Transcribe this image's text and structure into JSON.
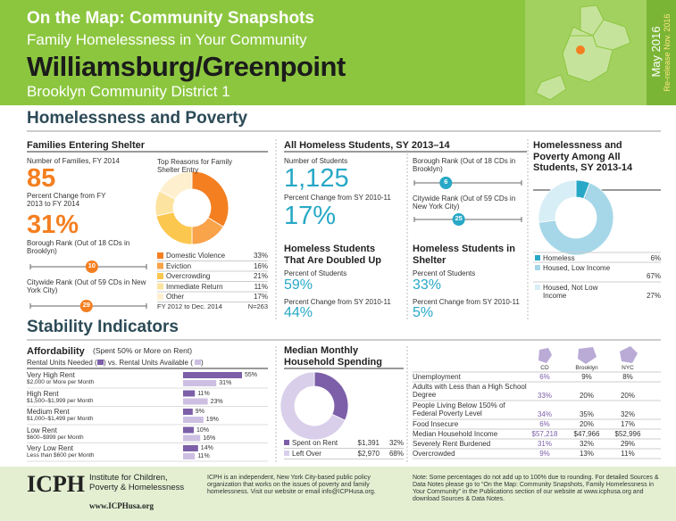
{
  "header": {
    "kicker": "On the Map: Community Snapshots",
    "subtitle": "Family Homelessness in Your Community",
    "title": "Williamsburg/Greenpoint",
    "district": "Brooklyn Community District 1",
    "date": "May 2016",
    "rerelease": "Re-release Nov. 2016"
  },
  "section1": "Homelessness and Poverty",
  "families": {
    "heading": "Families Entering Shelter",
    "count_label": "Number of Families, FY 2014",
    "count": "85",
    "change_label": "Percent Change from FY 2013 to FY 2014",
    "change": "31%",
    "borough_rank": {
      "label": "Borough Rank (Out of 18 CDs in Brooklyn)",
      "value": 10,
      "of": 18
    },
    "citywide_rank": {
      "label": "Citywide Rank (Out of 59 CDs in New York City)",
      "value": 29,
      "of": 59
    },
    "reasons": {
      "title": "Top Reasons for Family Shelter Entry",
      "categories": [
        "Domestic Violence",
        "Eviction",
        "Overcrowding",
        "Immediate Return",
        "Other"
      ],
      "values": [
        33,
        16,
        21,
        11,
        17
      ],
      "value_labels": [
        "33%",
        "16%",
        "21%",
        "11%",
        "17%"
      ],
      "colors": [
        "#f47f20",
        "#f9a34b",
        "#fcc74f",
        "#fde3a0",
        "#fef0cf"
      ],
      "period": "FY 2012 to Dec. 2014",
      "n": "N=263"
    }
  },
  "students": {
    "heading": "All Homeless Students, SY 2013–14",
    "count_label": "Number of Students",
    "count": "1,125",
    "change_label": "Percent Change from SY 2010-11",
    "change": "17%",
    "borough_rank": {
      "label": "Borough Rank (Out of 18 CDs in Brooklyn)",
      "value": 6,
      "of": 18
    },
    "citywide_rank": {
      "label": "Citywide Rank (Out of 59 CDs in New York City)",
      "value": 25,
      "of": 59
    }
  },
  "doubled_up": {
    "heading": "Homeless Students That Are Doubled Up",
    "pct_label": "Percent of Students",
    "pct": "59%",
    "change_label": "Percent Change from SY 2010-11",
    "change": "44%"
  },
  "shelter": {
    "heading": "Homeless Students in Shelter",
    "pct_label": "Percent of Students",
    "pct": "33%",
    "change_label": "Percent Change from SY 2010-11",
    "change": "5%"
  },
  "poverty": {
    "heading": "Homelessness and Poverty Among All Students, SY 2013-14",
    "categories": [
      "Homeless",
      "Housed, Low Income",
      "Housed, Not Low Income"
    ],
    "values": [
      6,
      67,
      27
    ],
    "value_labels": [
      "6%",
      "67%",
      "27%"
    ],
    "colors": [
      "#28a8c7",
      "#a6d7e9",
      "#d8eef6"
    ]
  },
  "section2": "Stability Indicators",
  "affordability": {
    "heading": "Affordability",
    "heading_note": "(Spent 50% or More on Rent)",
    "legend_text": [
      "Rental Units Needed (",
      ") vs. Rental Units Available (",
      ")"
    ],
    "categories": [
      "Very High Rent",
      "High Rent",
      "Medium Rent",
      "Low Rent",
      "Very Low Rent"
    ],
    "sublabels": [
      "$2,000 or More per Month",
      "$1,500–$1,999 per Month",
      "$1,000–$1,499 per Month",
      "$600–$999 per Month",
      "Less than $600 per Month"
    ],
    "series": [
      {
        "name": "Rental Units Needed",
        "color": "#7c5fa8",
        "values": [
          55,
          11,
          9,
          10,
          14
        ],
        "value_labels": [
          "55%",
          "11%",
          "9%",
          "10%",
          "14%"
        ]
      },
      {
        "name": "Rental Units Available",
        "color": "#cdbfe2",
        "values": [
          31,
          23,
          19,
          16,
          11
        ],
        "value_labels": [
          "31%",
          "23%",
          "19%",
          "16%",
          "11%"
        ]
      }
    ]
  },
  "spending": {
    "heading": "Median Monthly Household Spending",
    "categories": [
      "Spent on Rent",
      "Left Over"
    ],
    "amounts": [
      "$1,391",
      "$2,970"
    ],
    "values": [
      32,
      68
    ],
    "value_labels": [
      "32%",
      "68%"
    ],
    "colors": [
      "#7c5fa8",
      "#d9cfea"
    ]
  },
  "indicators": {
    "columns": [
      "CD",
      "Brooklyn",
      "NYC"
    ],
    "rows": [
      [
        "Unemployment",
        "6%",
        "9%",
        "8%"
      ],
      [
        "Adults with Less than a High School Degree",
        "33%",
        "20%",
        "20%"
      ],
      [
        "People Living Below 150% of Federal Poverty Level",
        "34%",
        "35%",
        "32%"
      ],
      [
        "Food Insecure",
        "6%",
        "20%",
        "17%"
      ],
      [
        "Median Household Income",
        "$57,218",
        "$47,966",
        "$52,996"
      ],
      [
        "Severely Rent Burdened",
        "31%",
        "32%",
        "29%"
      ],
      [
        "Overcrowded",
        "9%",
        "13%",
        "11%"
      ]
    ]
  },
  "footer": {
    "logo": "ICPH",
    "org": "Institute for Children, Poverty & Homelessness",
    "url": "www.ICPHusa.org",
    "about": "ICPH is an independent, New York City-based public policy organization that works on the issues of poverty and family homelessness. Visit our website or email info@ICPHusa.org.",
    "note": "Note: Some percentages do not add up to 100% due to rounding. For detailed Sources & Data Notes please go to “On the Map: Community Snapshots, Family Homelessness in Your Community” in the Publications section of our website at www.icphusa.org and download Sources & Data Notes."
  }
}
